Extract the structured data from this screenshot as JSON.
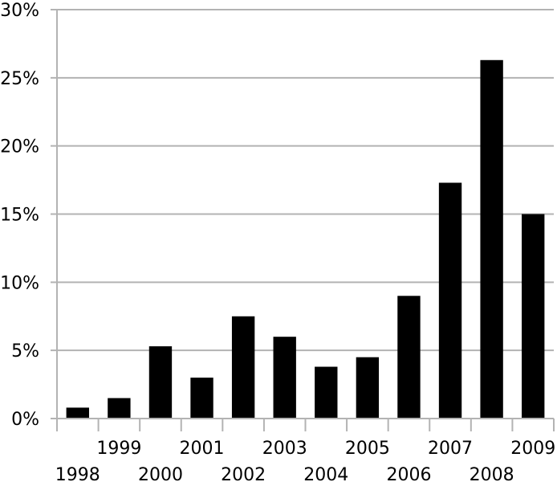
{
  "chart_data": {
    "type": "bar",
    "title": "",
    "xlabel": "",
    "ylabel": "",
    "categories": [
      "1998",
      "1999",
      "2000",
      "2001",
      "2002",
      "2003",
      "2004",
      "2005",
      "2006",
      "2007",
      "2008",
      "2009"
    ],
    "values": [
      0.8,
      1.5,
      5.3,
      3.0,
      7.5,
      6.0,
      3.8,
      4.5,
      9.0,
      17.3,
      26.3,
      15.0
    ],
    "ylim": [
      0,
      30
    ],
    "yticks": [
      0,
      5,
      10,
      15,
      20,
      25,
      30
    ],
    "ytick_labels": [
      "0%",
      "5%",
      "10%",
      "15%",
      "20%",
      "25%",
      "30%"
    ],
    "grid": true,
    "legend": "none",
    "colors": {
      "bar": "#000000",
      "grid": "#b3b3b3",
      "axis": "#b3b3b3",
      "text": "#000000",
      "background": "#ffffff"
    }
  }
}
